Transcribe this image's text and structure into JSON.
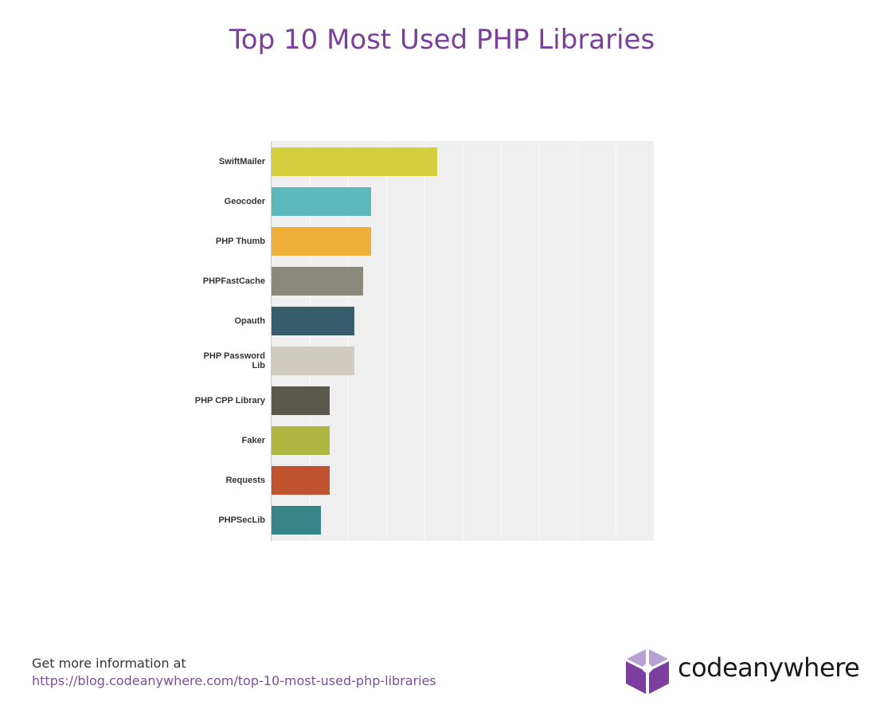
{
  "title": "Top 10 Most Used PHP Libraries",
  "chart_data": {
    "type": "bar",
    "orientation": "horizontal",
    "title": "Top 10 Most Used PHP Libraries",
    "xlabel": "",
    "ylabel": "",
    "xlim": [
      0,
      10
    ],
    "grid": true,
    "axis_tick_labels_shown": false,
    "legend": "none",
    "categories": [
      "SwiftMailer",
      "Geocoder",
      "PHP Thumb",
      "PHPFastCache",
      "Opauth",
      "PHP Password Lib",
      "PHP CPP Library",
      "Faker",
      "Requests",
      "PHPSecLib"
    ],
    "values": [
      4.33,
      2.6,
      2.6,
      2.4,
      2.17,
      2.17,
      1.52,
      1.52,
      1.52,
      1.29
    ],
    "colors": [
      "#d4cd3c",
      "#5db8bb",
      "#efae3a",
      "#8b887c",
      "#385e6e",
      "#d0ccc1",
      "#5b584c",
      "#b0b642",
      "#bf532f",
      "#388587"
    ]
  },
  "bars": [
    {
      "label": "SwiftMailer",
      "label_lines": [
        "SwiftMailer"
      ],
      "value": 4.33,
      "color": "#d4cd3c"
    },
    {
      "label": "Geocoder",
      "label_lines": [
        "Geocoder"
      ],
      "value": 2.6,
      "color": "#5db8bb"
    },
    {
      "label": "PHP Thumb",
      "label_lines": [
        "PHP Thumb"
      ],
      "value": 2.6,
      "color": "#efae3a"
    },
    {
      "label": "PHPFastCache",
      "label_lines": [
        "PHPFastCache"
      ],
      "value": 2.4,
      "color": "#8b887c"
    },
    {
      "label": "Opauth",
      "label_lines": [
        "Opauth"
      ],
      "value": 2.17,
      "color": "#385e6e"
    },
    {
      "label": "PHP Password Lib",
      "label_lines": [
        "PHP Password",
        "Lib"
      ],
      "value": 2.17,
      "color": "#d0ccc1"
    },
    {
      "label": "PHP CPP Library",
      "label_lines": [
        "PHP CPP Library"
      ],
      "value": 1.52,
      "color": "#5b584c"
    },
    {
      "label": "Faker",
      "label_lines": [
        "Faker"
      ],
      "value": 1.52,
      "color": "#b0b642"
    },
    {
      "label": "Requests",
      "label_lines": [
        "Requests"
      ],
      "value": 1.52,
      "color": "#bf532f"
    },
    {
      "label": "PHPSecLib",
      "label_lines": [
        "PHPSecLib"
      ],
      "value": 1.29,
      "color": "#388587"
    }
  ],
  "footer": {
    "info_text": "Get more information at",
    "link_text": "https://blog.codeanywhere.com/top-10-most-used-php-libraries"
  },
  "brand": {
    "logo_icon": "cube-logo-icon",
    "name": "codeanywhere",
    "colors": {
      "light": "#b9a0d4",
      "dark": "#7d3f9f",
      "title": "#7b3f99"
    }
  }
}
